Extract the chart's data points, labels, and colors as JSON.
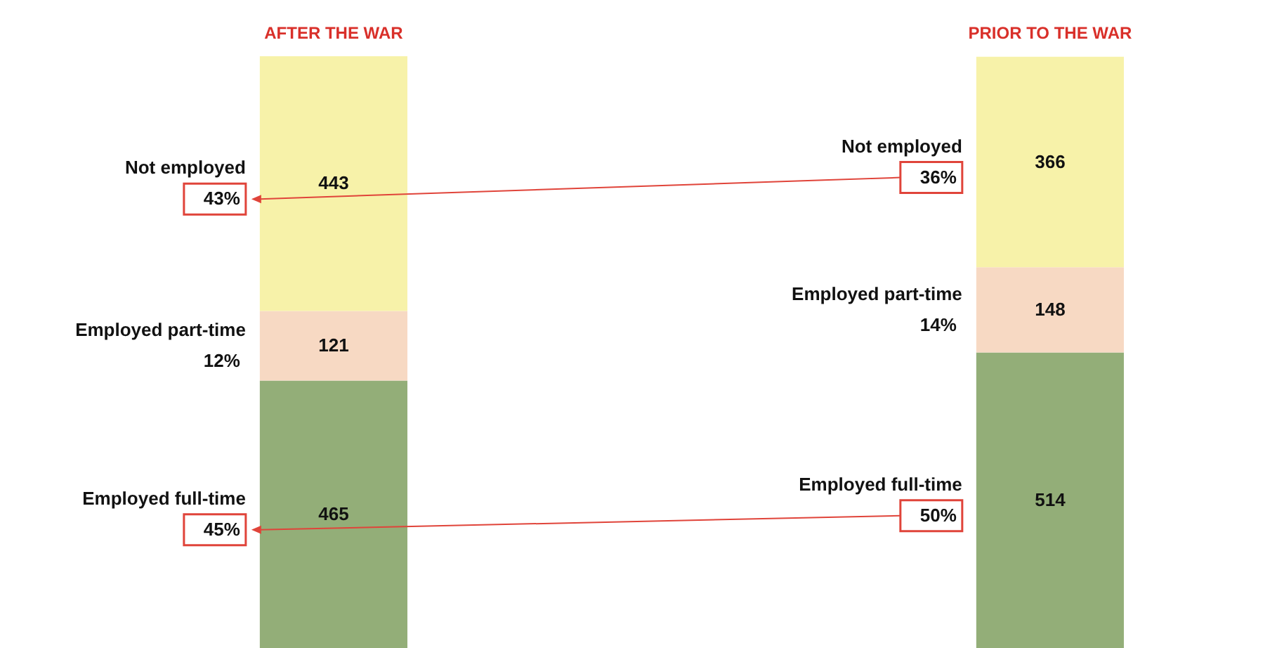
{
  "chart_data": {
    "type": "bar",
    "stacked": true,
    "data_labels": true,
    "tick_labels": "x",
    "categories": [
      "AFTER THE WAR",
      "PRIOR TO THE WAR"
    ],
    "series": [
      {
        "name": "Employed full-time",
        "color": "#93ae78",
        "values": [
          465,
          514
        ]
      },
      {
        "name": "Employed  part-time",
        "color": "#f7d9c3",
        "values": [
          121,
          148
        ]
      },
      {
        "name": "Not employed",
        "color": "#f7f2a9",
        "values": [
          443,
          366
        ]
      }
    ],
    "annotations": [
      "45%",
      "12%",
      "43%",
      "50%",
      "14%",
      "36%"
    ]
  }
}
